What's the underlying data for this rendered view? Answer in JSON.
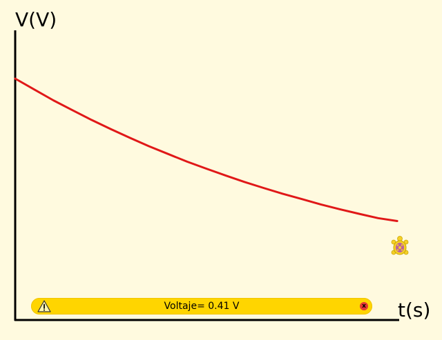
{
  "axes": {
    "ylabel": "V(V)",
    "xlabel": "t(s)"
  },
  "status": {
    "message": "Voltaje= 0.41 V",
    "close_symbol": "x",
    "warning_symbol": "!",
    "warning_icon": "warning-icon",
    "close_icon": "close-icon"
  },
  "turtle": {
    "icon": "turtle-icon"
  },
  "colors": {
    "background": "#fffadf",
    "curve": "#e01818",
    "axis": "#000000",
    "status_bar": "#ffd500",
    "close_button": "#e53935",
    "turtle_shell": "#f5d028",
    "turtle_spots": "#b04fb0"
  },
  "chart_data": {
    "type": "line",
    "xlabel": "t(s)",
    "ylabel": "V(V)",
    "description_curve": "exponential decay",
    "series": [
      {
        "points": [
          [
            0,
            1.0
          ],
          [
            0.5,
            0.955
          ],
          [
            1,
            0.91
          ],
          [
            1.5,
            0.869
          ],
          [
            2,
            0.829
          ],
          [
            2.5,
            0.791
          ],
          [
            3,
            0.755
          ],
          [
            3.5,
            0.72
          ],
          [
            4,
            0.688
          ],
          [
            4.5,
            0.656
          ],
          [
            5,
            0.627
          ],
          [
            5.5,
            0.599
          ],
          [
            6,
            0.572
          ],
          [
            6.5,
            0.547
          ],
          [
            7,
            0.523
          ],
          [
            7.5,
            0.501
          ],
          [
            8,
            0.479
          ],
          [
            8.5,
            0.459
          ],
          [
            9,
            0.44
          ],
          [
            9.5,
            0.422
          ],
          [
            10,
            0.41
          ]
        ]
      }
    ],
    "xlim": [
      0,
      10.45
    ],
    "ylim": [
      0,
      1.2
    ],
    "grid": false
  }
}
